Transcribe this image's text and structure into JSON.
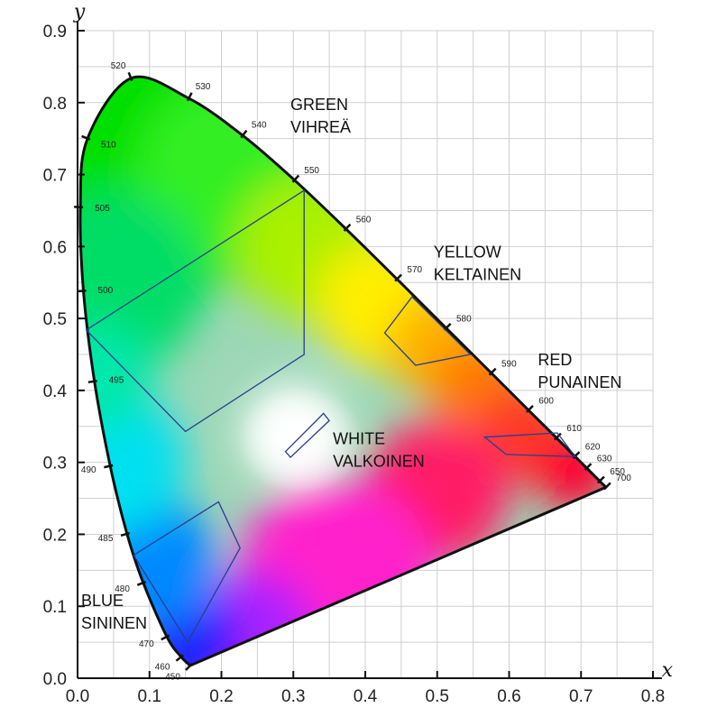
{
  "chart_data": {
    "type": "scatter",
    "xlabel": "x",
    "ylabel": "y",
    "xlim": [
      0,
      0.8
    ],
    "ylim": [
      0,
      0.9
    ],
    "xticks": [
      "0.0",
      "0.1",
      "0.2",
      "0.3",
      "0.4",
      "0.5",
      "0.6",
      "0.7",
      "0.8"
    ],
    "yticks": [
      "0.0",
      "0.1",
      "0.2",
      "0.3",
      "0.4",
      "0.5",
      "0.6",
      "0.7",
      "0.8",
      "0.9"
    ],
    "grid": true,
    "spectral_locus": [
      {
        "nm": "450",
        "x": 0.1566,
        "y": 0.0177
      },
      {
        "nm": "460",
        "x": 0.144,
        "y": 0.0297
      },
      {
        "nm": "470",
        "x": 0.1241,
        "y": 0.0578
      },
      {
        "nm": "480",
        "x": 0.0913,
        "y": 0.1327
      },
      {
        "nm": "485",
        "x": 0.0687,
        "y": 0.2007
      },
      {
        "nm": "490",
        "x": 0.0454,
        "y": 0.295
      },
      {
        "nm": "495",
        "x": 0.0235,
        "y": 0.4127
      },
      {
        "nm": "500",
        "x": 0.0082,
        "y": 0.5384
      },
      {
        "nm": "505",
        "x": 0.0039,
        "y": 0.6548
      },
      {
        "nm": "510",
        "x": 0.0139,
        "y": 0.7502
      },
      {
        "nm": "520",
        "x": 0.0743,
        "y": 0.8338
      },
      {
        "nm": "530",
        "x": 0.1547,
        "y": 0.8059
      },
      {
        "nm": "540",
        "x": 0.2296,
        "y": 0.7543
      },
      {
        "nm": "550",
        "x": 0.3016,
        "y": 0.6923
      },
      {
        "nm": "560",
        "x": 0.3731,
        "y": 0.6245
      },
      {
        "nm": "570",
        "x": 0.4441,
        "y": 0.5547
      },
      {
        "nm": "580",
        "x": 0.5125,
        "y": 0.4866
      },
      {
        "nm": "590",
        "x": 0.5752,
        "y": 0.4242
      },
      {
        "nm": "600",
        "x": 0.627,
        "y": 0.3725
      },
      {
        "nm": "610",
        "x": 0.6658,
        "y": 0.334
      },
      {
        "nm": "620",
        "x": 0.6915,
        "y": 0.3083
      },
      {
        "nm": "630",
        "x": 0.7079,
        "y": 0.292
      },
      {
        "nm": "650",
        "x": 0.726,
        "y": 0.274
      },
      {
        "nm": "700",
        "x": 0.7347,
        "y": 0.2653
      }
    ],
    "regions": [
      {
        "label": [
          "GREEN",
          "VIHREÄ"
        ],
        "polygon": [
          [
            0.012,
            0.484
          ],
          [
            0.315,
            0.678
          ],
          [
            0.315,
            0.45
          ],
          [
            0.15,
            0.343
          ]
        ]
      },
      {
        "label": [
          "YELLOW",
          "KELTAINEN"
        ],
        "polygon": [
          [
            0.427,
            0.48
          ],
          [
            0.465,
            0.53
          ],
          [
            0.546,
            0.45
          ],
          [
            0.47,
            0.435
          ]
        ]
      },
      {
        "label": [
          "RED",
          "PUNAINEN"
        ],
        "polygon": [
          [
            0.566,
            0.335
          ],
          [
            0.667,
            0.341
          ],
          [
            0.692,
            0.308
          ],
          [
            0.596,
            0.311
          ]
        ]
      },
      {
        "label": [
          "WHITE",
          "VALKOINEN"
        ],
        "polygon": [
          [
            0.289,
            0.315
          ],
          [
            0.342,
            0.368
          ],
          [
            0.35,
            0.358
          ],
          [
            0.296,
            0.307
          ]
        ]
      },
      {
        "label": [
          "BLUE",
          "SININEN"
        ],
        "polygon": [
          [
            0.078,
            0.171
          ],
          [
            0.196,
            0.245
          ],
          [
            0.226,
            0.181
          ],
          [
            0.153,
            0.05
          ]
        ]
      }
    ]
  }
}
